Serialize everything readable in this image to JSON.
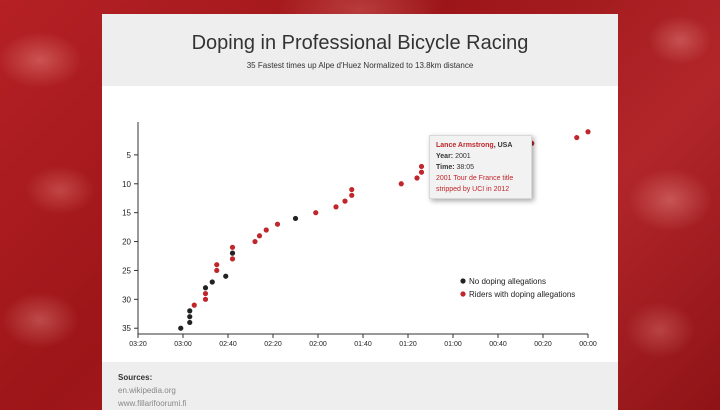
{
  "header": {
    "title": "Doping in Professional Bicycle Racing",
    "subtitle": "35 Fastest times up Alpe d'Huez Normalized to 13.8km distance"
  },
  "tooltip": {
    "name": "Lance Armstrong",
    "nationality": "USA",
    "year_label": "Year:",
    "year": "2001",
    "time_label": "Time:",
    "time": "38:05",
    "note": "2001 Tour de France title stripped by UCI in 2012"
  },
  "sources": {
    "heading": "Sources:",
    "items": [
      "en.wikipedia.org",
      "www.fillarifoorumi.fi"
    ]
  },
  "colors": {
    "no_doping": "#222222",
    "doping": "#c0262b",
    "background": "#a8191c"
  },
  "chart_data": {
    "type": "scatter",
    "xlabel": "",
    "ylabel": "",
    "x_unit": "seconds behind fastest time",
    "xlim": [
      200,
      0
    ],
    "ylim": [
      36,
      0
    ],
    "x_tick_values": [
      200,
      180,
      160,
      140,
      120,
      100,
      80,
      60,
      40,
      20,
      0
    ],
    "x_tick_labels": [
      "03:20",
      "03:00",
      "02:40",
      "02:20",
      "02:00",
      "01:40",
      "01:20",
      "01:00",
      "00:40",
      "00:20",
      "00:00"
    ],
    "y_ticks": [
      5,
      10,
      15,
      20,
      25,
      30,
      35
    ],
    "legend": {
      "position": "bottom-right",
      "entries": [
        "No doping allegations",
        "Riders with doping allegations"
      ]
    },
    "series": [
      {
        "name": "No doping allegations",
        "color": "#222222",
        "points": [
          [
            181,
            35
          ],
          [
            177,
            34
          ],
          [
            177,
            33
          ],
          [
            177,
            32
          ],
          [
            170,
            28
          ],
          [
            167,
            27
          ],
          [
            161,
            26
          ],
          [
            158,
            22
          ],
          [
            130,
            16
          ]
        ]
      },
      {
        "name": "Riders with doping allegations",
        "color": "#c0262b",
        "points": [
          [
            0,
            1
          ],
          [
            5,
            2
          ],
          [
            25,
            3
          ],
          [
            47,
            4
          ],
          [
            52,
            5
          ],
          [
            60,
            6
          ],
          [
            74,
            7
          ],
          [
            74,
            8
          ],
          [
            76,
            9
          ],
          [
            83,
            10
          ],
          [
            105,
            11
          ],
          [
            105,
            12
          ],
          [
            108,
            13
          ],
          [
            112,
            14
          ],
          [
            121,
            15
          ],
          [
            138,
            17
          ],
          [
            143,
            18
          ],
          [
            146,
            19
          ],
          [
            148,
            20
          ],
          [
            158,
            21
          ],
          [
            158,
            23
          ],
          [
            165,
            24
          ],
          [
            165,
            25
          ],
          [
            170,
            29
          ],
          [
            170,
            30
          ],
          [
            175,
            31
          ]
        ]
      }
    ]
  }
}
